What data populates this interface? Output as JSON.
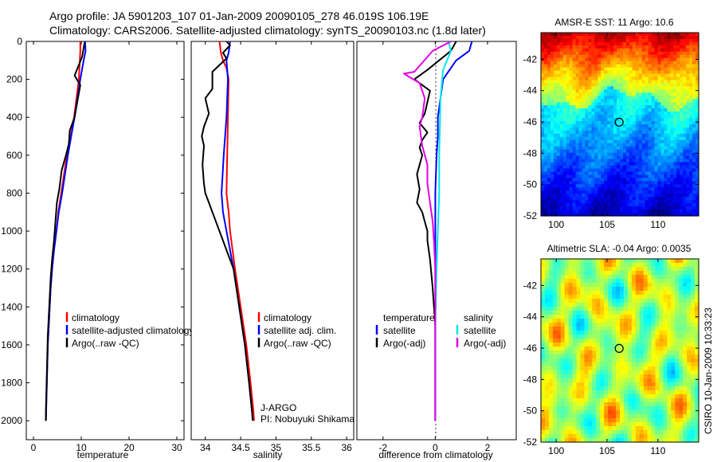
{
  "header": {
    "line1": "Argo profile: JA 5901203_107 01-Jan-2009 20090105_278 46.019S 106.19E",
    "line2": "Climatology: CARS2006. Satellite-adjusted climatology: synTS_20090103.nc (1.8d later)"
  },
  "side_label": "CSIRO 10-Jan-2009 10:33:23",
  "chart_data": [
    {
      "id": "temperature",
      "type": "line",
      "xlabel": "temperature",
      "ylabel": "",
      "xlim": [
        -1.5,
        31.5
      ],
      "ylim": [
        0,
        2100
      ],
      "y_reversed": true,
      "xticks": [
        0,
        10,
        20,
        30
      ],
      "yticks": [
        0,
        200,
        400,
        600,
        800,
        1000,
        1200,
        1400,
        1600,
        1800,
        2000
      ],
      "legend": [
        "climatology",
        "satellite-adjusted climatology",
        "Argo(..raw -QC)"
      ],
      "series": [
        {
          "name": "climatology",
          "color": "#ff0000",
          "points": [
            [
              9.8,
              0
            ],
            [
              9.8,
              50
            ],
            [
              9.7,
              100
            ],
            [
              9.5,
              200
            ],
            [
              9.0,
              300
            ],
            [
              8.5,
              400
            ],
            [
              7.8,
              500
            ],
            [
              7.0,
              600
            ],
            [
              6.4,
              700
            ],
            [
              5.8,
              800
            ],
            [
              5.2,
              900
            ],
            [
              4.8,
              1000
            ],
            [
              4.3,
              1100
            ],
            [
              3.9,
              1200
            ],
            [
              3.6,
              1300
            ],
            [
              3.4,
              1400
            ],
            [
              3.2,
              1500
            ],
            [
              3.0,
              1600
            ],
            [
              2.9,
              1700
            ],
            [
              2.8,
              1800
            ],
            [
              2.7,
              1900
            ],
            [
              2.6,
              2000
            ]
          ]
        },
        {
          "name": "satellite-adjusted climatology",
          "color": "#0000ff",
          "points": [
            [
              10.8,
              0
            ],
            [
              10.9,
              50
            ],
            [
              10.5,
              100
            ],
            [
              9.8,
              200
            ],
            [
              9.2,
              300
            ],
            [
              8.6,
              400
            ],
            [
              7.9,
              500
            ],
            [
              7.2,
              600
            ],
            [
              6.6,
              700
            ],
            [
              6.0,
              800
            ],
            [
              5.3,
              900
            ],
            [
              4.8,
              1000
            ],
            [
              4.3,
              1100
            ],
            [
              3.9,
              1200
            ],
            [
              3.6,
              1300
            ],
            [
              3.4,
              1400
            ],
            [
              3.2,
              1500
            ],
            [
              3.0,
              1600
            ],
            [
              2.9,
              1700
            ],
            [
              2.8,
              1800
            ],
            [
              2.7,
              1900
            ],
            [
              2.6,
              2000
            ]
          ]
        },
        {
          "name": "Argo(..raw -QC)",
          "color": "#000000",
          "points": [
            [
              10.7,
              5
            ],
            [
              10.2,
              80
            ],
            [
              8.6,
              180
            ],
            [
              9.8,
              230
            ],
            [
              9.3,
              300
            ],
            [
              8.6,
              400
            ],
            [
              7.6,
              470
            ],
            [
              7.4,
              540
            ],
            [
              6.8,
              600
            ],
            [
              5.9,
              680
            ],
            [
              5.4,
              780
            ],
            [
              4.9,
              850
            ],
            [
              4.6,
              950
            ],
            [
              4.3,
              1050
            ],
            [
              3.9,
              1150
            ],
            [
              3.6,
              1250
            ],
            [
              3.4,
              1350
            ],
            [
              3.2,
              1450
            ],
            [
              3.0,
              1550
            ],
            [
              2.9,
              1650
            ],
            [
              2.8,
              1750
            ],
            [
              2.7,
              1850
            ],
            [
              2.6,
              1950
            ],
            [
              2.6,
              2000
            ]
          ]
        }
      ]
    },
    {
      "id": "salinity",
      "type": "line",
      "xlabel": "salinity",
      "ylabel": "",
      "xlim": [
        33.8,
        36.1
      ],
      "ylim": [
        0,
        2100
      ],
      "y_reversed": true,
      "xticks": [
        34,
        34.5,
        35,
        35.5,
        36
      ],
      "yticks": [],
      "legend": [
        "climatology",
        "satellite adj. clim.",
        "Argo(..raw -QC)"
      ],
      "annotations": [
        "J-ARGO",
        "PI: Nobuyuki Shikama"
      ],
      "series": [
        {
          "name": "climatology",
          "color": "#ff0000",
          "points": [
            [
              34.2,
              0
            ],
            [
              34.22,
              60
            ],
            [
              34.25,
              100
            ],
            [
              34.3,
              140
            ],
            [
              34.33,
              200
            ],
            [
              34.32,
              400
            ],
            [
              34.31,
              600
            ],
            [
              34.3,
              800
            ],
            [
              34.33,
              900
            ],
            [
              34.35,
              1000
            ],
            [
              34.42,
              1200
            ],
            [
              34.5,
              1400
            ],
            [
              34.58,
              1600
            ],
            [
              34.64,
              1800
            ],
            [
              34.68,
              1950
            ],
            [
              34.69,
              2000
            ]
          ]
        },
        {
          "name": "satellite adj. clim.",
          "color": "#0000ff",
          "points": [
            [
              34.35,
              0
            ],
            [
              34.33,
              60
            ],
            [
              34.3,
              100
            ],
            [
              34.32,
              200
            ],
            [
              34.3,
              400
            ],
            [
              34.26,
              600
            ],
            [
              34.23,
              800
            ],
            [
              34.25,
              900
            ],
            [
              34.3,
              1000
            ],
            [
              34.4,
              1200
            ],
            [
              34.48,
              1400
            ],
            [
              34.56,
              1600
            ],
            [
              34.62,
              1800
            ],
            [
              34.66,
              1950
            ],
            [
              34.67,
              2000
            ]
          ]
        },
        {
          "name": "Argo(..raw -QC)",
          "color": "#000000",
          "points": [
            [
              34.3,
              0
            ],
            [
              34.35,
              20
            ],
            [
              34.25,
              60
            ],
            [
              34.3,
              90
            ],
            [
              34.1,
              160
            ],
            [
              34.1,
              250
            ],
            [
              34.0,
              300
            ],
            [
              34.05,
              380
            ],
            [
              33.98,
              450
            ],
            [
              33.95,
              500
            ],
            [
              33.98,
              550
            ],
            [
              33.96,
              650
            ],
            [
              33.98,
              750
            ],
            [
              34.0,
              800
            ],
            [
              34.05,
              850
            ],
            [
              34.1,
              900
            ],
            [
              34.15,
              950
            ],
            [
              34.2,
              1000
            ],
            [
              34.3,
              1100
            ],
            [
              34.4,
              1200
            ],
            [
              34.48,
              1400
            ],
            [
              34.56,
              1600
            ],
            [
              34.62,
              1800
            ],
            [
              34.66,
              1950
            ],
            [
              34.67,
              2000
            ]
          ]
        }
      ]
    },
    {
      "id": "difference",
      "type": "line",
      "xlabel": "difference from climatology",
      "ylabel": "",
      "xlim": [
        -3.0,
        3.1
      ],
      "ylim": [
        0,
        2100
      ],
      "y_reversed": true,
      "xticks": [
        -2,
        0,
        2
      ],
      "yticks": [],
      "legend_groups": [
        {
          "title": "temperature",
          "items": [
            "satellite",
            "Argo(-adj)"
          ]
        },
        {
          "title": "salinity",
          "items": [
            "satellite",
            "Argo(-adj)"
          ]
        }
      ],
      "series": [
        {
          "name": "satellite",
          "group": "temperature",
          "color": "#0000ff",
          "points": [
            [
              1.4,
              0
            ],
            [
              1.3,
              50
            ],
            [
              0.8,
              100
            ],
            [
              0.3,
              200
            ],
            [
              0.2,
              300
            ],
            [
              0.1,
              400
            ],
            [
              0.1,
              500
            ],
            [
              0.05,
              600
            ],
            [
              0.0,
              800
            ],
            [
              0.0,
              1000
            ],
            [
              0.0,
              2000
            ]
          ]
        },
        {
          "name": "Argo(-adj)",
          "group": "temperature",
          "color": "#000000",
          "points": [
            [
              0.8,
              0
            ],
            [
              0.6,
              50
            ],
            [
              -0.3,
              150
            ],
            [
              -0.8,
              200
            ],
            [
              -0.2,
              260
            ],
            [
              -0.3,
              320
            ],
            [
              -0.4,
              380
            ],
            [
              -0.6,
              430
            ],
            [
              -0.3,
              480
            ],
            [
              -0.5,
              520
            ],
            [
              -0.6,
              560
            ],
            [
              -0.5,
              600
            ],
            [
              -0.6,
              650
            ],
            [
              -0.7,
              700
            ],
            [
              -0.6,
              780
            ],
            [
              -0.7,
              850
            ],
            [
              -0.5,
              900
            ],
            [
              -0.4,
              950
            ],
            [
              -0.3,
              1000
            ],
            [
              -0.3,
              1050
            ],
            [
              -0.2,
              1150
            ],
            [
              -0.1,
              1300
            ],
            [
              0.0,
              1500
            ],
            [
              0.0,
              2000
            ]
          ]
        },
        {
          "name": "satellite",
          "group": "salinity",
          "color": "#00e5ee",
          "points": [
            [
              0.5,
              0
            ],
            [
              0.6,
              50
            ],
            [
              0.3,
              150
            ],
            [
              0.2,
              300
            ],
            [
              0.15,
              600
            ],
            [
              0.15,
              800
            ],
            [
              0.1,
              1000
            ],
            [
              0.05,
              1200
            ],
            [
              0.0,
              1500
            ],
            [
              0.0,
              2000
            ]
          ]
        },
        {
          "name": "Argo(-adj)",
          "group": "salinity",
          "color": "#e400e4",
          "points": [
            [
              0.6,
              0
            ],
            [
              -0.1,
              50
            ],
            [
              -0.8,
              160
            ],
            [
              -1.2,
              170
            ],
            [
              -0.6,
              220
            ],
            [
              -0.4,
              300
            ],
            [
              -0.5,
              400
            ],
            [
              -0.6,
              450
            ],
            [
              -0.5,
              550
            ],
            [
              -0.3,
              650
            ],
            [
              -0.3,
              750
            ],
            [
              -0.2,
              850
            ],
            [
              -0.1,
              950
            ],
            [
              -0.05,
              1050
            ],
            [
              0.0,
              1200
            ],
            [
              0.0,
              2000
            ]
          ]
        }
      ]
    },
    {
      "id": "sst-map",
      "type": "heatmap",
      "title": "AMSR-E SST: 11 Argo: 10.6",
      "xlim": [
        98.5,
        114
      ],
      "ylim": [
        -52,
        -40.3
      ],
      "xticks": [
        100,
        105,
        110
      ],
      "yticks": [
        -42,
        -44,
        -46,
        -48,
        -50,
        -52
      ],
      "marker": {
        "lon": 106.19,
        "lat": -46.019
      }
    },
    {
      "id": "sla-map",
      "type": "heatmap",
      "title": "Altimetric SLA: -0.04 Argo: 0.0035",
      "xlim": [
        98.5,
        114
      ],
      "ylim": [
        -52,
        -40.3
      ],
      "xticks": [
        100,
        105,
        110
      ],
      "yticks": [
        -42,
        -44,
        -46,
        -48,
        -50,
        -52
      ],
      "marker": {
        "lon": 106.19,
        "lat": -46.019
      }
    }
  ]
}
